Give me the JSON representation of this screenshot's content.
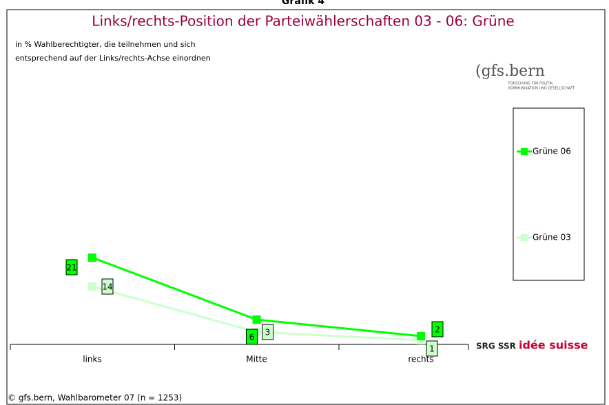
{
  "header": "Grafik 4",
  "logos": {
    "top": "(gfs.bern",
    "top_sub1": "FORSCHUNG FÜR POLITIK,",
    "top_sub2": "KOMMUNIKATION UND GESELLSCHAFT",
    "bottom_a": "SRG SSR",
    "bottom_b": "idée suisse"
  },
  "footer": "© gfs.bern, Wahlbarometer 07 (n = 1253)",
  "chart_data": {
    "type": "line",
    "title": "Links/rechts-Position der Parteiwählerschaften 03 - 06: Grüne",
    "subtitle": [
      "in % Wahlberechtigter, die teilnehmen und sich",
      "entsprechend auf der Links/rechts-Achse einordnen"
    ],
    "categories": [
      "links",
      "Mitte",
      "rechts"
    ],
    "ylim": [
      0,
      80
    ],
    "series": [
      {
        "name": "Grüne 06",
        "color": "#00ff00",
        "values": [
          21,
          6,
          2
        ]
      },
      {
        "name": "Grüne 03",
        "color": "#ccffcc",
        "values": [
          14,
          3,
          1
        ]
      }
    ],
    "legend": "right"
  }
}
